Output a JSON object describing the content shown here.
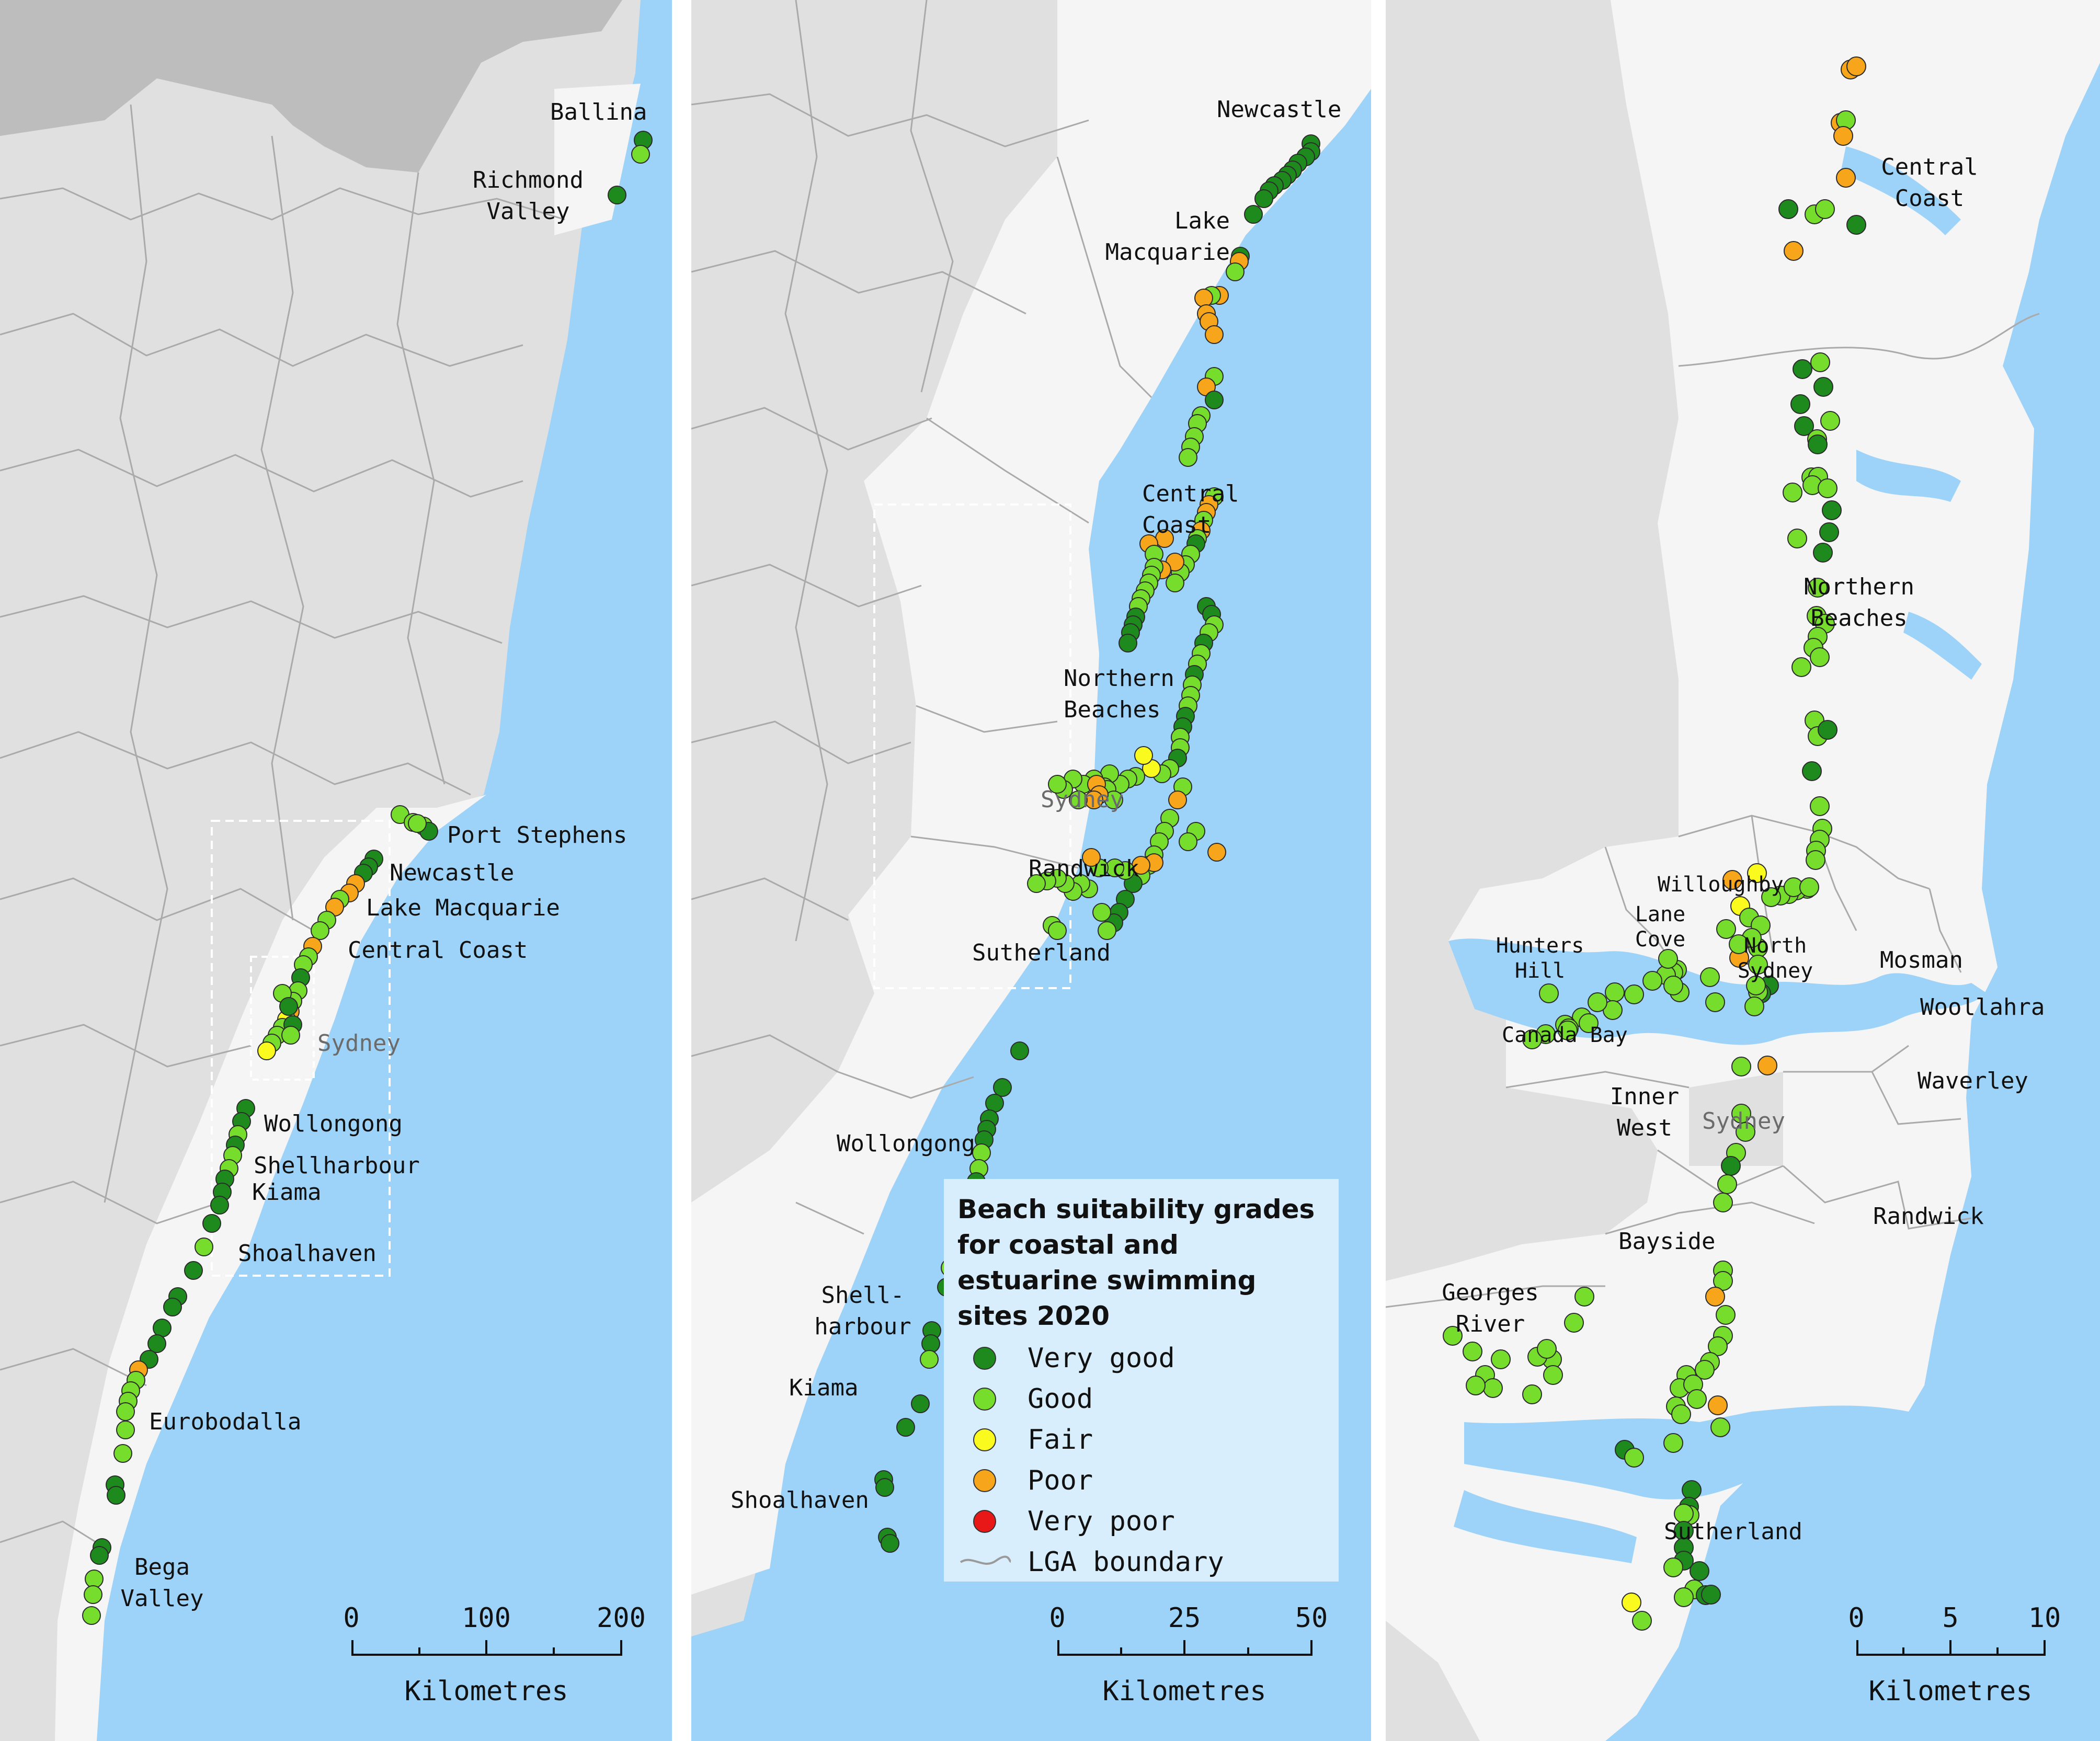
{
  "colors": {
    "sea": "#9dd3f8",
    "land": "#e0e0e0",
    "lga": "#f5f5f5",
    "darkland": "#bdbdbd",
    "boundary": "#aaaaaa",
    "very_good": "#1e8a1e",
    "good": "#77dd2d",
    "fair": "#fafa1e",
    "poor": "#f7a51b",
    "very_poor": "#e81818"
  },
  "legend": {
    "title": "Beach suitability grades for coastal and estuarine swimming sites 2020",
    "items": [
      {
        "label": "Very good",
        "grade": "very_good"
      },
      {
        "label": "Good",
        "grade": "good"
      },
      {
        "label": "Fair",
        "grade": "fair"
      },
      {
        "label": "Poor",
        "grade": "poor"
      },
      {
        "label": "Very poor",
        "grade": "very_poor"
      }
    ],
    "boundary_label": "LGA boundary"
  },
  "panel1": {
    "labels": {
      "ballina": "Ballina",
      "richmond_valley": [
        "Richmond",
        "Valley"
      ],
      "port_stephens": "Port Stephens",
      "newcastle": "Newcastle",
      "lake_macquarie": "Lake Macquarie",
      "central_coast": "Central Coast",
      "sydney": "Sydney",
      "wollongong": "Wollongong",
      "shellharbour": "Shellharbour",
      "kiama": "Kiama",
      "shoalhaven": "Shoalhaven",
      "eurobodalla": "Eurobodalla",
      "bega_valley": [
        "Bega",
        "Valley"
      ]
    },
    "scale": {
      "ticks": [
        "0",
        "100",
        "200"
      ],
      "unit": "Kilometres"
    }
  },
  "panel2": {
    "labels": {
      "newcastle": "Newcastle",
      "lake_macquarie": [
        "Lake",
        "Macquarie"
      ],
      "central_coast": [
        "Central",
        "Coast"
      ],
      "northern_beaches": [
        "Northern",
        "Beaches"
      ],
      "sydney": "Sydney",
      "randwick": "Randwick",
      "sutherland": "Sutherland",
      "wollongong": "Wollongong",
      "shellharbour": [
        "Shell-",
        "harbour"
      ],
      "kiama": "Kiama",
      "shoalhaven": "Shoalhaven"
    },
    "scale": {
      "ticks": [
        "0",
        "25",
        "50"
      ],
      "unit": "Kilometres"
    }
  },
  "panel3": {
    "labels": {
      "central_coast": [
        "Central",
        "Coast"
      ],
      "northern_beaches": [
        "Northern",
        "Beaches"
      ],
      "willoughby": "Willoughby",
      "lane_cove": [
        "Lane",
        "Cove"
      ],
      "hunters_hill": [
        "Hunters",
        "Hill"
      ],
      "north_sydney": [
        "North",
        "Sydney"
      ],
      "mosman": "Mosman",
      "woollahra": "Woollahra",
      "canada_bay": "Canada Bay",
      "inner_west": [
        "Inner",
        "West"
      ],
      "sydney": "Sydney",
      "waverley": "Waverley",
      "randwick": "Randwick",
      "bayside": "Bayside",
      "georges_river": [
        "Georges",
        "River"
      ],
      "sutherland": "Sutherland"
    },
    "scale": {
      "ticks": [
        "0",
        "5",
        "10"
      ],
      "unit": "Kilometres"
    }
  }
}
